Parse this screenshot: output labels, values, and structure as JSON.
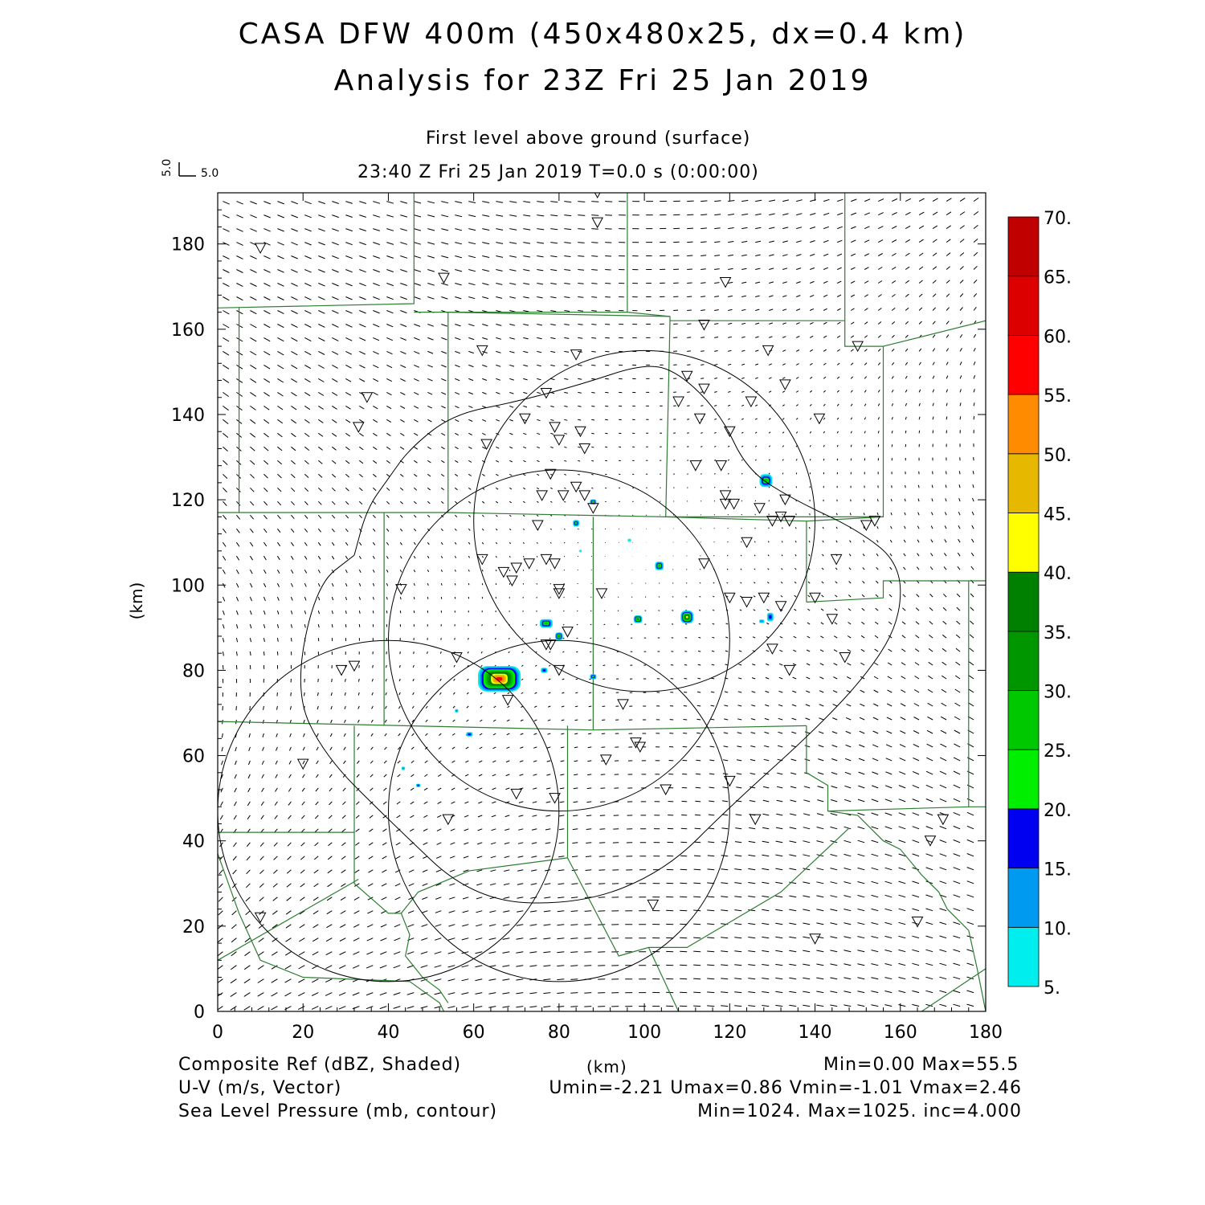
{
  "header": {
    "title": "CASA DFW 400m (450x480x25, dx=0.4 km)",
    "subtitle": "Analysis for 23Z Fri 25 Jan 2019",
    "level": "First level above ground (surface)",
    "time": "23:40 Z Fri 25 Jan 2019    T=0.0 s (0:00:00)"
  },
  "reference_vector": {
    "u_label": "5.0",
    "v_label": "5.0"
  },
  "footer": {
    "field1_name": "Composite Ref (dBZ, Shaded)",
    "axis_unit": "(km)",
    "field1_stats": "Min=0.00 Max=55.5",
    "field2_name": "U-V (m/s, Vector)",
    "field2_stats": "Umin=-2.21 Umax=0.86 Vmin=-1.01 Vmax=2.46",
    "field3_name": "Sea Level Pressure (mb, contour)",
    "field3_stats": "Min=1024. Max=1025. inc=4.000"
  },
  "colors": {
    "boundary": "#2e7d32",
    "contour": "#000000"
  },
  "chart_data": {
    "type": "heatmap",
    "xlabel": "",
    "ylabel": "(km)",
    "xlim": [
      0,
      180
    ],
    "ylim": [
      0,
      192
    ],
    "x_ticks": [
      0,
      20,
      40,
      60,
      80,
      100,
      120,
      140,
      160,
      180
    ],
    "y_ticks": [
      0,
      20,
      40,
      60,
      80,
      100,
      120,
      140,
      160,
      180
    ],
    "x_tick_labels": [
      "0",
      "20",
      "40",
      "60",
      "80",
      "100",
      "120",
      "140",
      "160",
      "180"
    ],
    "y_tick_labels": [
      "0",
      "20",
      "40",
      "60",
      "80",
      "100",
      "120",
      "140",
      "160",
      "180"
    ],
    "colorbar": {
      "labels": [
        "5.",
        "10.",
        "15.",
        "20.",
        "25.",
        "30.",
        "35.",
        "40.",
        "45.",
        "50.",
        "55.",
        "60.",
        "65.",
        "70."
      ],
      "colors": [
        "#00eeee",
        "#009bf0",
        "#0000f0",
        "#00ee00",
        "#00c800",
        "#009600",
        "#008000",
        "#ffff00",
        "#e6b800",
        "#ff8c00",
        "#ff0000",
        "#dd0000",
        "#c00000",
        "#b30000",
        "#ff00ff"
      ]
    },
    "radar_rings": [
      {
        "center": [
          40,
          47
        ],
        "radius": 40
      },
      {
        "center": [
          80,
          47
        ],
        "radius": 40
      },
      {
        "center": [
          80,
          87
        ],
        "radius": 40
      },
      {
        "center": [
          100,
          115
        ],
        "radius": 40
      }
    ],
    "pressure_contour": [
      [
        32,
        107
      ],
      [
        35,
        118
      ],
      [
        40,
        125
      ],
      [
        45,
        132
      ],
      [
        55,
        140
      ],
      [
        70,
        143
      ],
      [
        85,
        147
      ],
      [
        100,
        152
      ],
      [
        108,
        150
      ],
      [
        118,
        140
      ],
      [
        124,
        127
      ],
      [
        135,
        120
      ],
      [
        150,
        113
      ],
      [
        160,
        105
      ],
      [
        160,
        92
      ],
      [
        153,
        80
      ],
      [
        140,
        66
      ],
      [
        120,
        48
      ],
      [
        105,
        33
      ],
      [
        85,
        25
      ],
      [
        60,
        26
      ],
      [
        40,
        45
      ],
      [
        25,
        60
      ],
      [
        18,
        75
      ],
      [
        23,
        100
      ],
      [
        32,
        107
      ]
    ],
    "echoes": [
      {
        "x": 66,
        "y": 78,
        "w": 10,
        "h": 6,
        "max_dbz": 55
      },
      {
        "x": 110,
        "y": 92.5,
        "w": 3,
        "h": 3,
        "max_dbz": 40
      },
      {
        "x": 128.5,
        "y": 124.5,
        "w": 3,
        "h": 3,
        "max_dbz": 25
      },
      {
        "x": 103.5,
        "y": 104.5,
        "w": 2,
        "h": 2,
        "max_dbz": 25
      },
      {
        "x": 98.5,
        "y": 92,
        "w": 2,
        "h": 1.8,
        "max_dbz": 30
      },
      {
        "x": 77,
        "y": 91,
        "w": 3,
        "h": 2,
        "max_dbz": 25
      },
      {
        "x": 80,
        "y": 88,
        "w": 1.8,
        "h": 1.8,
        "max_dbz": 30
      },
      {
        "x": 84,
        "y": 114.5,
        "w": 1.5,
        "h": 1.5,
        "max_dbz": 20
      },
      {
        "x": 88,
        "y": 119.5,
        "w": 1.5,
        "h": 1.2,
        "max_dbz": 25
      },
      {
        "x": 129.5,
        "y": 92.5,
        "w": 1.5,
        "h": 2,
        "max_dbz": 15
      },
      {
        "x": 76.5,
        "y": 80,
        "w": 1.5,
        "h": 1.2,
        "max_dbz": 15
      },
      {
        "x": 88,
        "y": 78.5,
        "w": 1.5,
        "h": 1.2,
        "max_dbz": 20
      },
      {
        "x": 59,
        "y": 65,
        "w": 1.5,
        "h": 1,
        "max_dbz": 15
      },
      {
        "x": 56,
        "y": 70.5,
        "w": 0.8,
        "h": 0.8,
        "max_dbz": 10
      },
      {
        "x": 43.5,
        "y": 57,
        "w": 0.8,
        "h": 0.8,
        "max_dbz": 10
      },
      {
        "x": 47,
        "y": 53,
        "w": 1,
        "h": 0.8,
        "max_dbz": 15
      },
      {
        "x": 96.5,
        "y": 110.5,
        "w": 0.8,
        "h": 0.7,
        "max_dbz": 5
      },
      {
        "x": 85,
        "y": 108,
        "w": 0.6,
        "h": 0.5,
        "max_dbz": 5
      },
      {
        "x": 127.5,
        "y": 91.5,
        "w": 1.2,
        "h": 0.8,
        "max_dbz": 10
      }
    ],
    "stations": [
      [
        10,
        179
      ],
      [
        89,
        192
      ],
      [
        89,
        185
      ],
      [
        53,
        172
      ],
      [
        119,
        171
      ],
      [
        114,
        161
      ],
      [
        62,
        155
      ],
      [
        84,
        154
      ],
      [
        129,
        155
      ],
      [
        150,
        156
      ],
      [
        35,
        144
      ],
      [
        77,
        145
      ],
      [
        110,
        149
      ],
      [
        114,
        146
      ],
      [
        133,
        147
      ],
      [
        108,
        143
      ],
      [
        125,
        143
      ],
      [
        33,
        137
      ],
      [
        72,
        139
      ],
      [
        79,
        137
      ],
      [
        85,
        136
      ],
      [
        113,
        139
      ],
      [
        120,
        136
      ],
      [
        141,
        139
      ],
      [
        63,
        133
      ],
      [
        80,
        134
      ],
      [
        86,
        132
      ],
      [
        112,
        128
      ],
      [
        118,
        128
      ],
      [
        78,
        126
      ],
      [
        84,
        123
      ],
      [
        76,
        121
      ],
      [
        81,
        121
      ],
      [
        86,
        121
      ],
      [
        119,
        121
      ],
      [
        133,
        120
      ],
      [
        119,
        119
      ],
      [
        121,
        119
      ],
      [
        127,
        118
      ],
      [
        88,
        118
      ],
      [
        132,
        116
      ],
      [
        130,
        115
      ],
      [
        134,
        115
      ],
      [
        154,
        115
      ],
      [
        152,
        114
      ],
      [
        75,
        114
      ],
      [
        124,
        110
      ],
      [
        62,
        106
      ],
      [
        73,
        105
      ],
      [
        70,
        104
      ],
      [
        77,
        106
      ],
      [
        79,
        105
      ],
      [
        67,
        103
      ],
      [
        114,
        105
      ],
      [
        145,
        106
      ],
      [
        69,
        101
      ],
      [
        43,
        99
      ],
      [
        80,
        99
      ],
      [
        90,
        98
      ],
      [
        80,
        98
      ],
      [
        120,
        97
      ],
      [
        124,
        96
      ],
      [
        128,
        97
      ],
      [
        132,
        95
      ],
      [
        140,
        97
      ],
      [
        144,
        92
      ],
      [
        82,
        89
      ],
      [
        78,
        86
      ],
      [
        77,
        86
      ],
      [
        130,
        85
      ],
      [
        56,
        83
      ],
      [
        147,
        83
      ],
      [
        29,
        80
      ],
      [
        32,
        81
      ],
      [
        80,
        80
      ],
      [
        134,
        80
      ],
      [
        68,
        73
      ],
      [
        95,
        72
      ],
      [
        98,
        63
      ],
      [
        99,
        62
      ],
      [
        20,
        58
      ],
      [
        91,
        59
      ],
      [
        120,
        54
      ],
      [
        105,
        52
      ],
      [
        70,
        51
      ],
      [
        79,
        50
      ],
      [
        54,
        45
      ],
      [
        126,
        45
      ],
      [
        170,
        45
      ],
      [
        167,
        40
      ],
      [
        10,
        22
      ],
      [
        102,
        25
      ],
      [
        164,
        21
      ],
      [
        140,
        17
      ]
    ]
  }
}
